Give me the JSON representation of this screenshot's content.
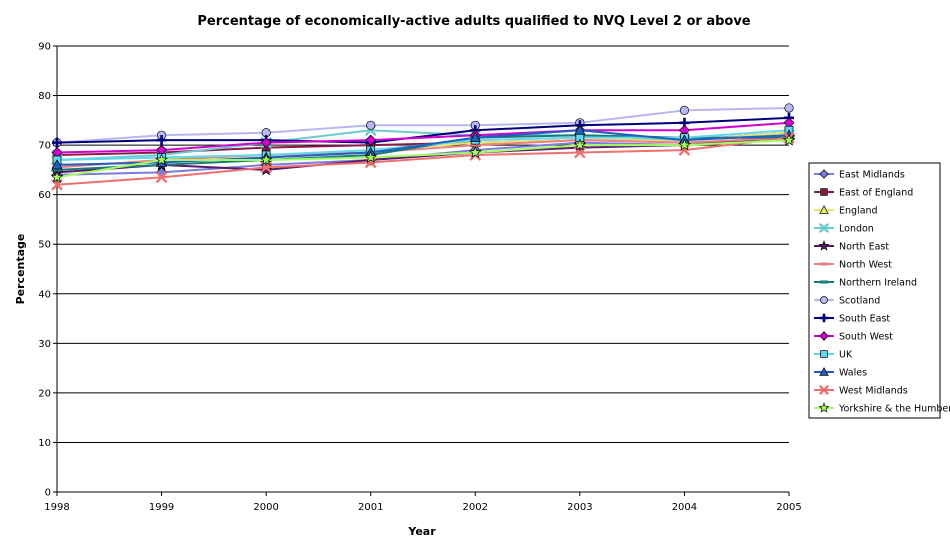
{
  "chart_data": {
    "type": "line",
    "title": "Percentage of economically-active adults qualified to NVQ Level 2 or above",
    "xlabel": "Year",
    "ylabel": "Percentage",
    "x": [
      "1998",
      "1999",
      "2000",
      "2001",
      "2002",
      "2003",
      "2004",
      "2005"
    ],
    "ylim": [
      0,
      90
    ],
    "yticks": [
      0,
      10,
      20,
      30,
      40,
      50,
      60,
      70,
      80,
      90
    ],
    "grid": true,
    "legend_position": "right",
    "series": [
      {
        "name": "East Midlands",
        "color": "#7b7be0",
        "marker": "diamond",
        "values": [
          64,
          64.5,
          66,
          67,
          69,
          70.5,
          70,
          72
        ]
      },
      {
        "name": "East of England",
        "color": "#8b1a4a",
        "marker": "square",
        "values": [
          68,
          68.5,
          69.5,
          70,
          70.5,
          71,
          71,
          72.5
        ]
      },
      {
        "name": "England",
        "color": "#e8e86a",
        "marker": "triangle",
        "values": [
          67,
          67.5,
          68,
          69,
          70.5,
          71,
          71,
          72.5
        ]
      },
      {
        "name": "London",
        "color": "#6ccccc",
        "marker": "x",
        "values": [
          67,
          68,
          70.5,
          73,
          72,
          72,
          71,
          72
        ]
      },
      {
        "name": "North East",
        "color": "#5a1a6a",
        "marker": "star",
        "values": [
          64.5,
          66,
          65,
          67,
          68.5,
          69.5,
          70,
          71.5
        ]
      },
      {
        "name": "North West",
        "color": "#f08080",
        "marker": "dash",
        "values": [
          65.5,
          67,
          68,
          68.5,
          70,
          71,
          70.5,
          71.5
        ]
      },
      {
        "name": "Northern Ireland",
        "color": "#1a7a7a",
        "marker": "dash",
        "values": [
          65,
          66,
          67,
          68,
          71.5,
          72,
          71.5,
          71.5
        ]
      },
      {
        "name": "Scotland",
        "color": "#b8b8f0",
        "marker": "circle",
        "values": [
          70.5,
          72,
          72.5,
          74,
          74,
          74.5,
          77,
          77.5
        ]
      },
      {
        "name": "South East",
        "color": "#00007a",
        "marker": "plus",
        "values": [
          70.5,
          71,
          71,
          70.5,
          73,
          74,
          74.5,
          75.5
        ]
      },
      {
        "name": "South West",
        "color": "#d000d0",
        "marker": "diamond",
        "values": [
          68.5,
          69,
          70.5,
          71,
          72,
          73,
          73,
          74.5
        ]
      },
      {
        "name": "UK",
        "color": "#60d8f0",
        "marker": "square",
        "values": [
          67,
          67.5,
          68,
          69,
          71,
          71.5,
          71.5,
          73
        ]
      },
      {
        "name": "Wales",
        "color": "#2060c0",
        "marker": "triangle",
        "values": [
          66,
          66.5,
          67.5,
          68.5,
          71.5,
          73,
          71,
          72
        ]
      },
      {
        "name": "West Midlands",
        "color": "#f07070",
        "marker": "x",
        "values": [
          62,
          63.5,
          65.5,
          66.5,
          68,
          68.5,
          69,
          71.5
        ]
      },
      {
        "name": "Yorkshire & the Humber",
        "color": "#a0ff60",
        "marker": "star",
        "values": [
          63.5,
          67,
          67,
          67.5,
          68.5,
          70,
          70,
          71
        ]
      }
    ]
  }
}
